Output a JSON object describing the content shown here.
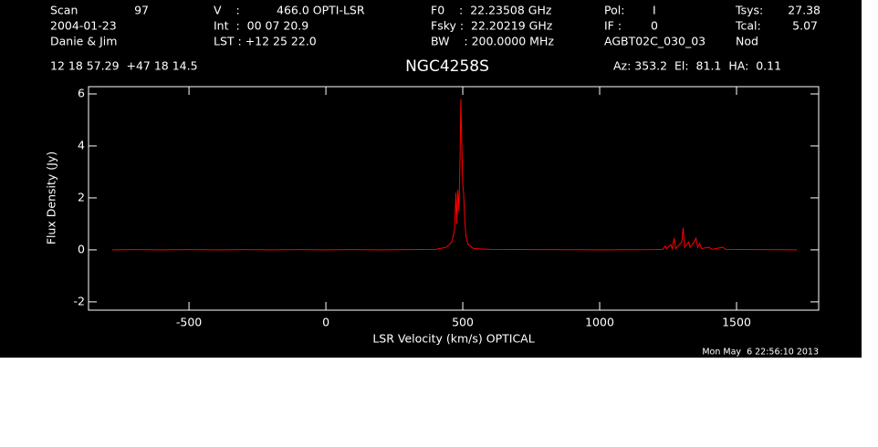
{
  "header": {
    "items": [
      "Scan",
      "97",
      "2004-01-23",
      "Danie & Jim",
      "V    :",
      "466.0 OPTI-LSR",
      "Int  :  00 07 20.9",
      "LST : +12 25 22.0",
      "F0    :  22.23508 GHz",
      "Fsky :  22.20219 GHz",
      "BW    : 200.0000 MHz",
      "Pol:",
      "I",
      "IF :",
      "0",
      "AGBT02C_030_03",
      "Tsys:",
      "27.38",
      "Tcal:",
      "5.07",
      "Nod",
      "12 18 57.29  +47 18 14.5",
      "Az: 353.2  El:  81.1  HA:  0.11",
      "Mon May  6 22:56:10 2013"
    ]
  },
  "chart_data": {
    "type": "line",
    "title": "NGC4258S",
    "x_label": "LSR Velocity (km/s) OPTICAL",
    "y_label": "Flux Density (Jy)",
    "x": [
      -780,
      -700,
      -600,
      -500,
      -400,
      -300,
      -200,
      -100,
      0,
      100,
      200,
      300,
      400,
      440,
      460,
      470,
      475,
      478,
      482,
      486,
      490,
      493,
      496,
      500,
      503,
      507,
      512,
      520,
      540,
      600,
      800,
      1000,
      1200,
      1230,
      1240,
      1245,
      1260,
      1265,
      1272,
      1278,
      1300,
      1305,
      1310,
      1325,
      1330,
      1345,
      1352,
      1358,
      1365,
      1372,
      1400,
      1410,
      1450,
      1460,
      1600,
      1720
    ],
    "series": [
      {
        "color": "#ff0000",
        "values": [
          0,
          0.01,
          0,
          0.01,
          0,
          0.01,
          0,
          0.01,
          0,
          0.01,
          0,
          0.01,
          0.02,
          0.1,
          0.3,
          0.8,
          2.2,
          1.0,
          2.3,
          1.5,
          3.5,
          5.8,
          4.2,
          2.5,
          2.2,
          1.2,
          0.5,
          0.2,
          0.05,
          0.02,
          0.01,
          0,
          0.01,
          0.02,
          0.15,
          0.05,
          0.2,
          0.05,
          0.45,
          0.05,
          0.3,
          0.85,
          0.1,
          0.3,
          0.1,
          0.3,
          0.45,
          0.1,
          0.25,
          0.05,
          0.1,
          0.02,
          0.1,
          0.02,
          0.01,
          0
        ]
      }
    ],
    "xlim": [
      -867,
      1800
    ],
    "ylim": [
      -2.32,
      6.28
    ],
    "xticks": [
      -500,
      0,
      500,
      1000,
      1500
    ],
    "yticks": [
      -2,
      0,
      2,
      4,
      6
    ]
  }
}
